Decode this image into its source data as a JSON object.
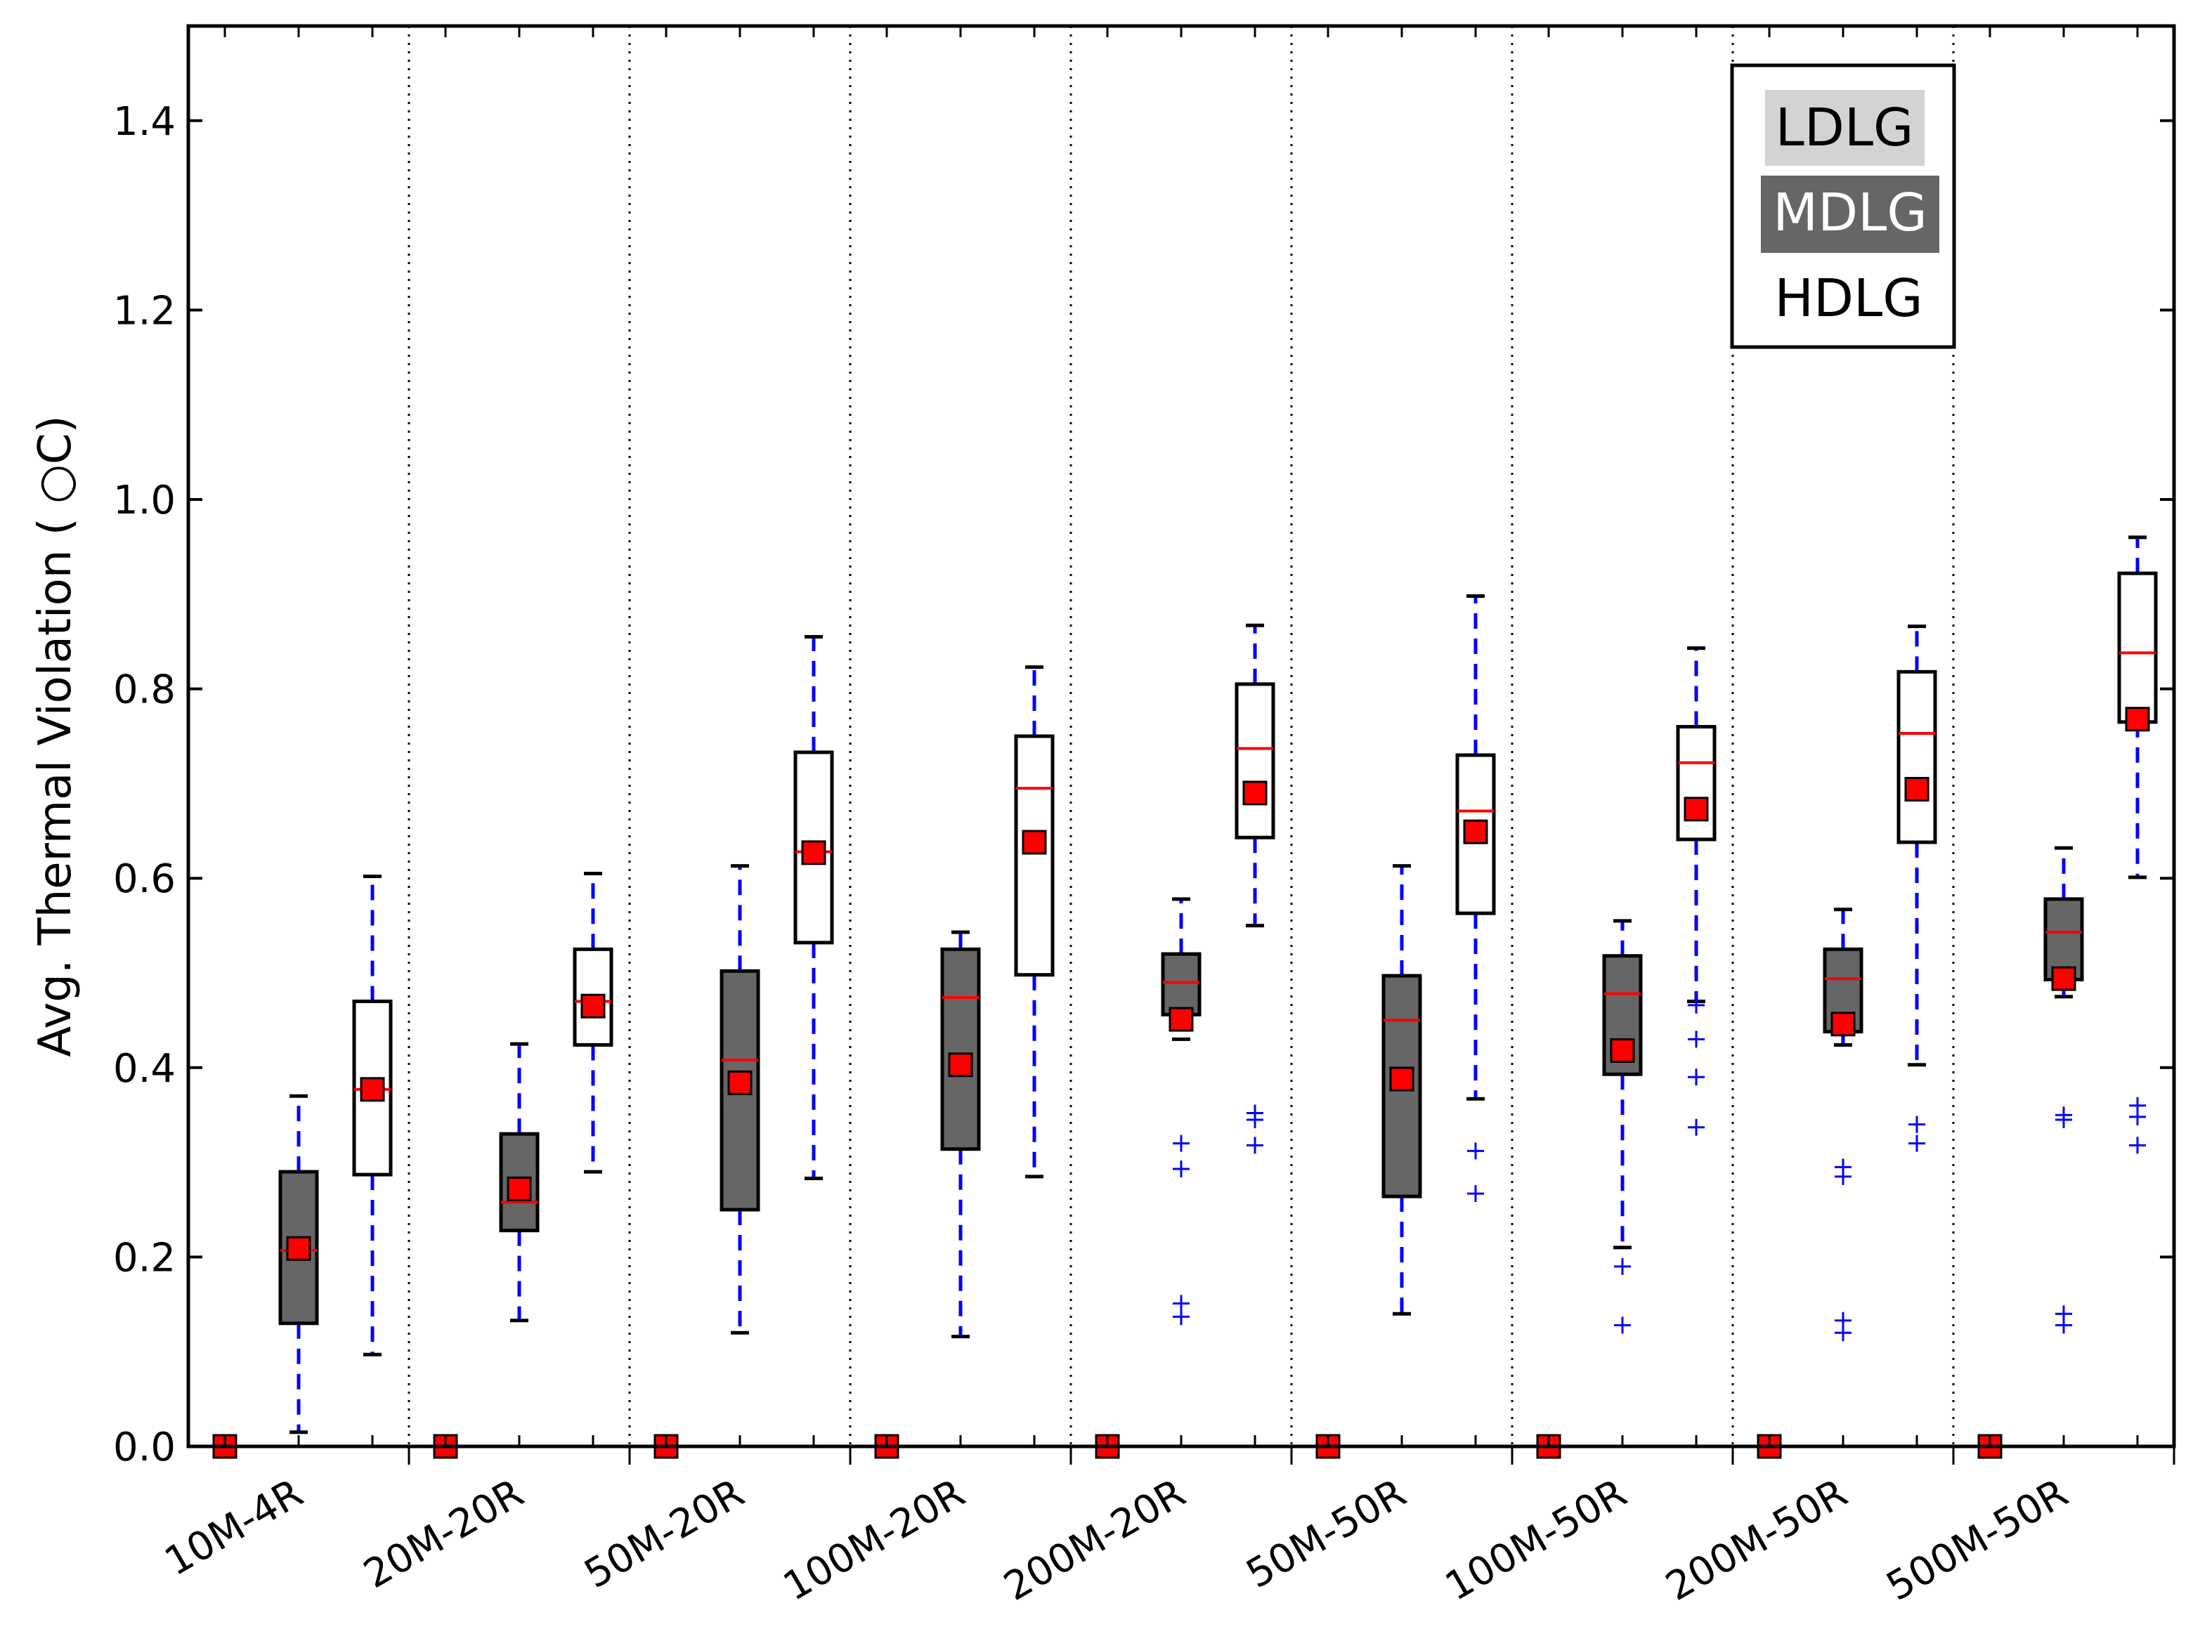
{
  "chart_data": {
    "type": "box",
    "xlabel": "",
    "ylabel": "Avg. Thermal Violation ( ○C)",
    "ylim": [
      0.0,
      1.5
    ],
    "yticks": [
      0.0,
      0.2,
      0.4,
      0.6,
      0.8,
      1.0,
      1.2,
      1.4
    ],
    "ytick_labels": [
      "0.0",
      "0.2",
      "0.4",
      "0.6",
      "0.8",
      "1.0",
      "1.2",
      "1.4"
    ],
    "categories": [
      "10M-4R",
      "20M-20R",
      "50M-20R",
      "100M-20R",
      "200M-20R",
      "50M-50R",
      "100M-50R",
      "200M-50R",
      "500M-50R"
    ],
    "grid": "vertical dotted separators between categories",
    "legend_position": "top-right",
    "series": [
      {
        "name": "LDLG",
        "fill": "#d3d3d3",
        "boxes": [
          {
            "min": 0,
            "q1": 0,
            "median": 0,
            "q3": 0,
            "max": 0,
            "mean": 0,
            "outliers": []
          },
          {
            "min": 0,
            "q1": 0,
            "median": 0,
            "q3": 0,
            "max": 0,
            "mean": 0,
            "outliers": []
          },
          {
            "min": 0,
            "q1": 0,
            "median": 0,
            "q3": 0,
            "max": 0,
            "mean": 0,
            "outliers": []
          },
          {
            "min": 0,
            "q1": 0,
            "median": 0,
            "q3": 0,
            "max": 0,
            "mean": 0,
            "outliers": []
          },
          {
            "min": 0,
            "q1": 0,
            "median": 0,
            "q3": 0,
            "max": 0,
            "mean": 0,
            "outliers": []
          },
          {
            "min": 0,
            "q1": 0,
            "median": 0,
            "q3": 0,
            "max": 0,
            "mean": 0,
            "outliers": []
          },
          {
            "min": 0,
            "q1": 0,
            "median": 0,
            "q3": 0,
            "max": 0,
            "mean": 0,
            "outliers": []
          },
          {
            "min": 0,
            "q1": 0,
            "median": 0,
            "q3": 0,
            "max": 0,
            "mean": 0,
            "outliers": []
          },
          {
            "min": 0,
            "q1": 0,
            "median": 0,
            "q3": 0,
            "max": 0,
            "mean": 0,
            "outliers": []
          }
        ]
      },
      {
        "name": "MDLG",
        "fill": "#666666",
        "boxes": [
          {
            "min": 0.015,
            "q1": 0.13,
            "median": 0.207,
            "q3": 0.29,
            "max": 0.37,
            "mean": 0.209,
            "outliers": []
          },
          {
            "min": 0.133,
            "q1": 0.228,
            "median": 0.258,
            "q3": 0.33,
            "max": 0.425,
            "mean": 0.272,
            "outliers": []
          },
          {
            "min": 0.12,
            "q1": 0.25,
            "median": 0.408,
            "q3": 0.502,
            "max": 0.613,
            "mean": 0.384,
            "outliers": []
          },
          {
            "min": 0.116,
            "q1": 0.314,
            "median": 0.474,
            "q3": 0.525,
            "max": 0.543,
            "mean": 0.403,
            "outliers": []
          },
          {
            "min": 0.43,
            "q1": 0.456,
            "median": 0.49,
            "q3": 0.52,
            "max": 0.578,
            "mean": 0.451,
            "outliers": [
              0.32,
              0.293,
              0.151,
              0.137
            ]
          },
          {
            "min": 0.14,
            "q1": 0.264,
            "median": 0.45,
            "q3": 0.497,
            "max": 0.613,
            "mean": 0.388,
            "outliers": []
          },
          {
            "min": 0.21,
            "q1": 0.393,
            "median": 0.478,
            "q3": 0.518,
            "max": 0.555,
            "mean": 0.418,
            "outliers": [
              0.19,
              0.128
            ]
          },
          {
            "min": 0.424,
            "q1": 0.438,
            "median": 0.494,
            "q3": 0.525,
            "max": 0.567,
            "mean": 0.446,
            "outliers": [
              0.295,
              0.285,
              0.133,
              0.12
            ]
          },
          {
            "min": 0.475,
            "q1": 0.493,
            "median": 0.543,
            "q3": 0.578,
            "max": 0.632,
            "mean": 0.494,
            "outliers": [
              0.35,
              0.345,
              0.14,
              0.128
            ]
          }
        ]
      },
      {
        "name": "HDLG",
        "fill": "#ffffff",
        "boxes": [
          {
            "min": 0.097,
            "q1": 0.287,
            "median": 0.377,
            "q3": 0.47,
            "max": 0.602,
            "mean": 0.377,
            "outliers": []
          },
          {
            "min": 0.29,
            "q1": 0.424,
            "median": 0.47,
            "q3": 0.525,
            "max": 0.605,
            "mean": 0.465,
            "outliers": []
          },
          {
            "min": 0.283,
            "q1": 0.532,
            "median": 0.628,
            "q3": 0.733,
            "max": 0.855,
            "mean": 0.627,
            "outliers": []
          },
          {
            "min": 0.285,
            "q1": 0.498,
            "median": 0.695,
            "q3": 0.75,
            "max": 0.823,
            "mean": 0.638,
            "outliers": []
          },
          {
            "min": 0.55,
            "q1": 0.643,
            "median": 0.737,
            "q3": 0.805,
            "max": 0.867,
            "mean": 0.69,
            "outliers": [
              0.352,
              0.345,
              0.318
            ]
          },
          {
            "min": 0.367,
            "q1": 0.563,
            "median": 0.671,
            "q3": 0.73,
            "max": 0.898,
            "mean": 0.649,
            "outliers": [
              0.312,
              0.267
            ]
          },
          {
            "min": 0.47,
            "q1": 0.641,
            "median": 0.722,
            "q3": 0.76,
            "max": 0.843,
            "mean": 0.673,
            "outliers": [
              0.466,
              0.43,
              0.39,
              0.337
            ]
          },
          {
            "min": 0.403,
            "q1": 0.638,
            "median": 0.753,
            "q3": 0.818,
            "max": 0.866,
            "mean": 0.694,
            "outliers": [
              0.34,
              0.32
            ]
          },
          {
            "min": 0.601,
            "q1": 0.765,
            "median": 0.838,
            "q3": 0.922,
            "max": 0.96,
            "mean": 0.768,
            "outliers": [
              0.36,
              0.348,
              0.318
            ]
          }
        ]
      }
    ],
    "median_color": "#ff0000",
    "mean_marker_color": "#ff0000",
    "whisker_color": "#0000ff",
    "outlier_color": "#0000ff"
  }
}
